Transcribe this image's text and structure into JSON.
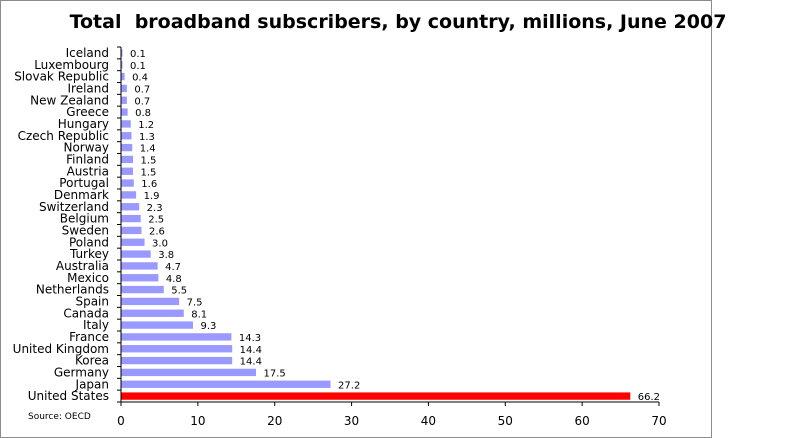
{
  "chart_data": {
    "type": "bar",
    "orientation": "horizontal",
    "title": "Total  broadband subscribers, by country, millions, June 2007",
    "xlabel": "",
    "ylabel": "",
    "categories": [
      "Iceland",
      "Luxembourg",
      "Slovak Republic",
      "Ireland",
      "New Zealand",
      "Greece",
      "Hungary",
      "Czech Republic",
      "Norway",
      "Finland",
      "Austria",
      "Portugal",
      "Denmark",
      "Switzerland",
      "Belgium",
      "Sweden",
      "Poland",
      "Turkey",
      "Australia",
      "Mexico",
      "Netherlands",
      "Spain",
      "Canada",
      "Italy",
      "France",
      "United Kingdom",
      "Korea",
      "Germany",
      "Japan",
      "United States"
    ],
    "values": [
      0.1,
      0.1,
      0.4,
      0.7,
      0.7,
      0.8,
      1.2,
      1.3,
      1.4,
      1.5,
      1.5,
      1.6,
      1.9,
      2.3,
      2.5,
      2.6,
      3.0,
      3.8,
      4.7,
      4.8,
      5.5,
      7.5,
      8.1,
      9.3,
      14.3,
      14.4,
      14.4,
      17.5,
      27.2,
      66.2
    ],
    "value_labels": [
      "0.1",
      "0.1",
      "0.4",
      "0.7",
      "0.7",
      "0.8",
      "1.2",
      "1.3",
      "1.4",
      "1.5",
      "1.5",
      "1.6",
      "1.9",
      "2.3",
      "2.5",
      "2.6",
      "3.0",
      "3.8",
      "4.7",
      "4.8",
      "5.5",
      "7.5",
      "8.1",
      "9.3",
      "14.3",
      "14.4",
      "14.4",
      "17.5",
      "27.2",
      "66.2"
    ],
    "xlim": [
      0,
      70
    ],
    "xticks": [
      0,
      10,
      20,
      30,
      40,
      50,
      60,
      70
    ],
    "grid": false,
    "legend": "none",
    "bar_color": "#9999ff",
    "highlight_color": "#ff0000",
    "highlight_category": "United States"
  },
  "source_note": "Source: OECD"
}
